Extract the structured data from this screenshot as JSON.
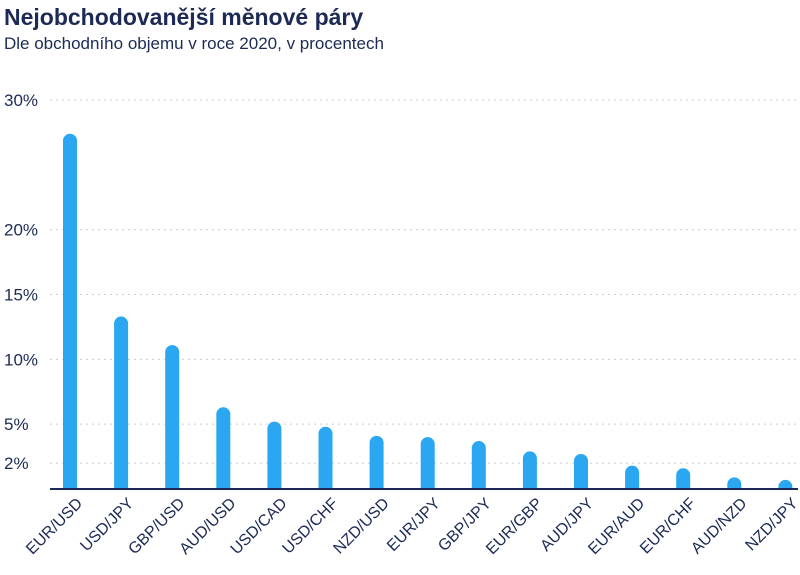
{
  "chart_data": {
    "type": "bar",
    "title": "Nejobchodovanější měnové páry",
    "subtitle": "Dle obchodního objemu v roce 2020, v procentech",
    "xlabel": "",
    "ylabel": "",
    "categories": [
      "EUR/USD",
      "USD/JPY",
      "GBP/USD",
      "AUD/USD",
      "USD/CAD",
      "USD/CHF",
      "NZD/USD",
      "EUR/JPY",
      "GBP/JPY",
      "EUR/GBP",
      "AUD/JPY",
      "EUR/AUD",
      "EUR/CHF",
      "AUD/NZD",
      "NZD/JPY"
    ],
    "values": [
      27.4,
      13.3,
      11.1,
      6.3,
      5.2,
      4.8,
      4.1,
      4.0,
      3.7,
      2.9,
      2.7,
      1.8,
      1.6,
      0.9,
      0.7
    ],
    "yticks": [
      2,
      5,
      10,
      15,
      20,
      30
    ],
    "ytick_labels": [
      "2%",
      "5%",
      "10%",
      "15%",
      "20%",
      "30%"
    ],
    "ylim": [
      0,
      30
    ],
    "grid": true,
    "bar_color": "#2aa7f0",
    "text_color": "#1c2a55",
    "grid_color": "#c7ccd6"
  }
}
